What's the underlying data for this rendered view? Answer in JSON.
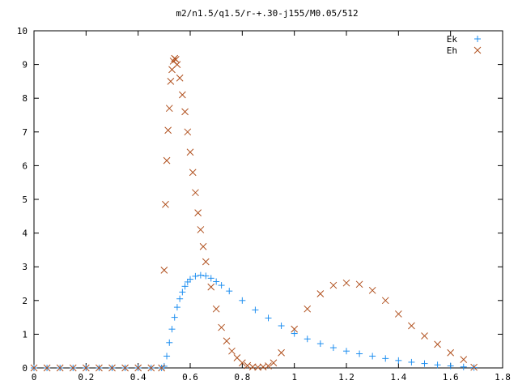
{
  "chart_data": {
    "type": "scatter",
    "title": "m2/n1.5/q1.5/r-+.30-j155/M0.05/512",
    "xlim": [
      0,
      1.8
    ],
    "ylim": [
      0,
      10
    ],
    "x_ticks": [
      "0",
      "0.2",
      "0.4",
      "0.6",
      "0.8",
      "1",
      "1.2",
      "1.4",
      "1.6",
      "1.8"
    ],
    "y_ticks": [
      "0",
      "1",
      "2",
      "3",
      "4",
      "5",
      "6",
      "7",
      "8",
      "9",
      "10"
    ],
    "grid": false,
    "legend_position": "top-right",
    "series": [
      {
        "name": "Ek",
        "marker": "plus",
        "color": "#1f8ff0",
        "x": [
          0.0,
          0.05,
          0.1,
          0.15,
          0.2,
          0.25,
          0.3,
          0.35,
          0.4,
          0.45,
          0.49,
          0.5,
          0.51,
          0.52,
          0.53,
          0.54,
          0.55,
          0.56,
          0.57,
          0.58,
          0.59,
          0.6,
          0.62,
          0.64,
          0.66,
          0.68,
          0.7,
          0.72,
          0.75,
          0.8,
          0.85,
          0.9,
          0.95,
          1.0,
          1.05,
          1.1,
          1.15,
          1.2,
          1.25,
          1.3,
          1.35,
          1.4,
          1.45,
          1.5,
          1.55,
          1.6,
          1.65,
          1.69
        ],
        "y": [
          0.0,
          0.0,
          0.0,
          0.0,
          0.0,
          0.0,
          0.0,
          0.0,
          0.0,
          0.0,
          0.0,
          0.05,
          0.35,
          0.75,
          1.15,
          1.5,
          1.8,
          2.05,
          2.25,
          2.42,
          2.55,
          2.63,
          2.72,
          2.75,
          2.73,
          2.66,
          2.56,
          2.45,
          2.28,
          2.0,
          1.72,
          1.48,
          1.25,
          1.02,
          0.86,
          0.72,
          0.6,
          0.5,
          0.42,
          0.35,
          0.28,
          0.22,
          0.17,
          0.13,
          0.09,
          0.06,
          0.03,
          0.01
        ]
      },
      {
        "name": "Eh",
        "marker": "cross",
        "color": "#b0501e",
        "x": [
          0.0,
          0.05,
          0.1,
          0.15,
          0.2,
          0.25,
          0.3,
          0.35,
          0.4,
          0.45,
          0.49,
          0.5,
          0.505,
          0.51,
          0.515,
          0.52,
          0.525,
          0.53,
          0.535,
          0.54,
          0.545,
          0.55,
          0.56,
          0.57,
          0.58,
          0.59,
          0.6,
          0.61,
          0.62,
          0.63,
          0.64,
          0.65,
          0.66,
          0.68,
          0.7,
          0.72,
          0.74,
          0.76,
          0.78,
          0.8,
          0.82,
          0.84,
          0.86,
          0.88,
          0.9,
          0.92,
          0.95,
          1.0,
          1.05,
          1.1,
          1.15,
          1.2,
          1.25,
          1.3,
          1.35,
          1.4,
          1.45,
          1.5,
          1.55,
          1.6,
          1.65,
          1.69
        ],
        "y": [
          0.0,
          0.0,
          0.0,
          0.0,
          0.0,
          0.0,
          0.0,
          0.0,
          0.0,
          0.0,
          0.0,
          2.9,
          4.85,
          6.15,
          7.05,
          7.7,
          8.5,
          8.85,
          9.1,
          9.18,
          9.15,
          9.0,
          8.6,
          8.1,
          7.6,
          7.0,
          6.4,
          5.8,
          5.2,
          4.6,
          4.1,
          3.6,
          3.15,
          2.4,
          1.75,
          1.2,
          0.8,
          0.5,
          0.3,
          0.15,
          0.07,
          0.03,
          0.02,
          0.03,
          0.06,
          0.15,
          0.45,
          1.15,
          1.75,
          2.2,
          2.45,
          2.52,
          2.48,
          2.3,
          2.0,
          1.6,
          1.25,
          0.95,
          0.7,
          0.45,
          0.25,
          0.02
        ]
      }
    ]
  }
}
